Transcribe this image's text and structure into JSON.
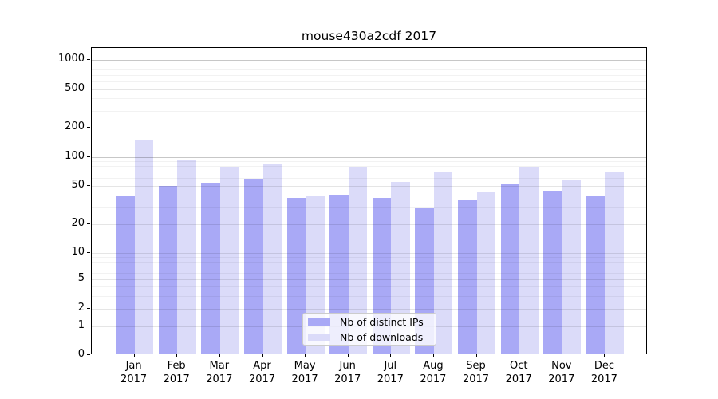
{
  "title": "mouse430a2cdf 2017",
  "chart_data": {
    "type": "bar",
    "title": "mouse430a2cdf 2017",
    "categories": [
      "Jan 2017",
      "Feb 2017",
      "Mar 2017",
      "Apr 2017",
      "May 2017",
      "Jun 2017",
      "Jul 2017",
      "Aug 2017",
      "Sep 2017",
      "Oct 2017",
      "Nov 2017",
      "Dec 2017"
    ],
    "series": [
      {
        "name": "Nb of distinct IPs",
        "color": "#a9a9f6",
        "values": [
          38,
          48,
          52,
          57,
          36,
          39,
          36,
          28,
          34,
          50,
          43,
          38
        ]
      },
      {
        "name": "Nb of downloads",
        "color": "#dbdbf9",
        "values": [
          145,
          90,
          76,
          80,
          38,
          76,
          53,
          66,
          42,
          76,
          56,
          66
        ]
      }
    ],
    "y_axis": {
      "scale": "log (compressed linear segment near zero)",
      "tick_values": [
        0,
        1,
        2,
        5,
        10,
        20,
        50,
        100,
        200,
        500,
        1000
      ],
      "tick_labels": [
        "0",
        "1",
        "2",
        "5",
        "10",
        "20",
        "50",
        "100",
        "200",
        "500",
        "1000"
      ]
    },
    "xlabel": "",
    "ylabel": "",
    "grid": "horizontal major + log-minor gridlines",
    "legend_position": "lower center inside plot"
  }
}
